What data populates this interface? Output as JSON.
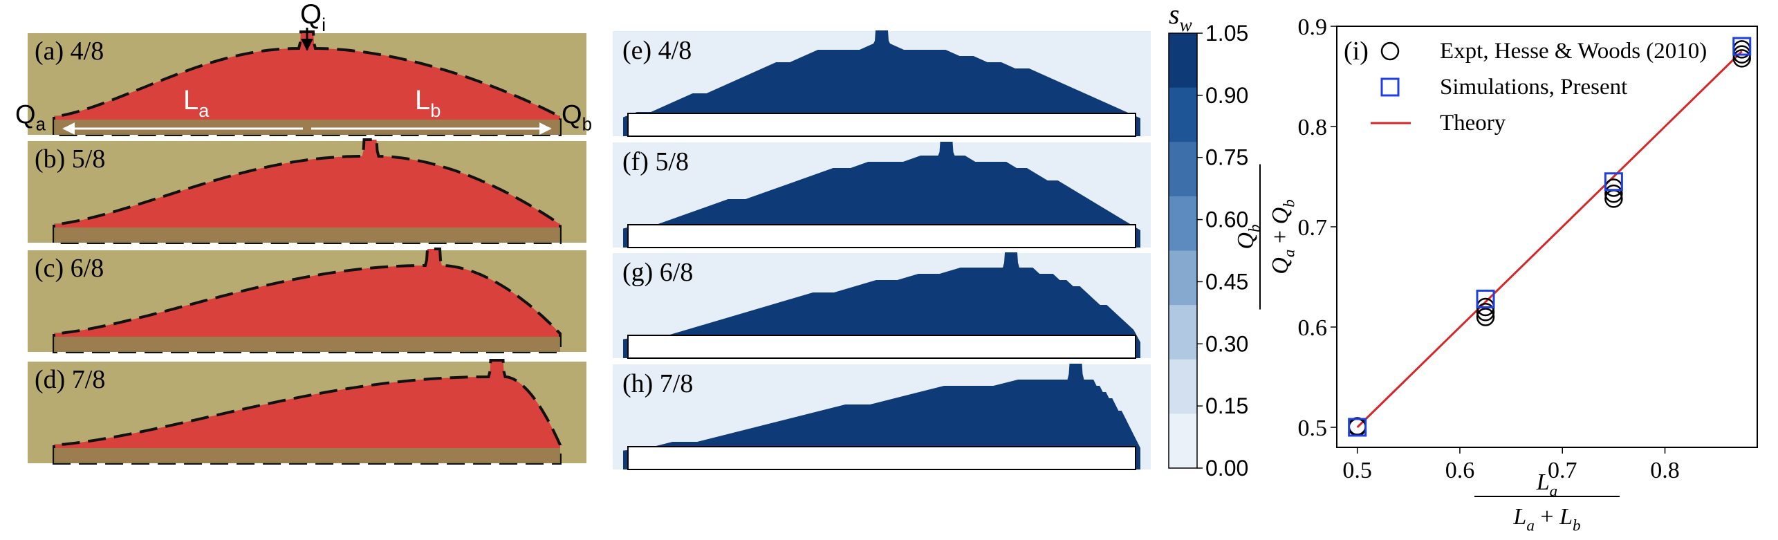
{
  "photo_panels": [
    {
      "label": "(a) 4/8",
      "source_fraction": 0.5
    },
    {
      "label": "(b) 5/8",
      "source_fraction": 0.625
    },
    {
      "label": "(c) 6/8",
      "source_fraction": 0.75
    },
    {
      "label": "(d) 7/8",
      "source_fraction": 0.875
    }
  ],
  "photo_annotations": {
    "Qi": "Q",
    "Qi_sub": "i",
    "Qa": "Q",
    "Qa_sub": "a",
    "Qb": "Q",
    "Qb_sub": "b",
    "La": "L",
    "La_sub": "a",
    "Lb": "L",
    "Lb_sub": "b"
  },
  "sim_panels": [
    {
      "label": "(e) 4/8",
      "source_fraction": 0.5
    },
    {
      "label": "(f) 5/8",
      "source_fraction": 0.625
    },
    {
      "label": "(g) 6/8",
      "source_fraction": 0.75
    },
    {
      "label": "(h) 7/8",
      "source_fraction": 0.875
    }
  ],
  "colors": {
    "fluid_red": "#d9413d",
    "photo_bg": "#b8ab72",
    "photo_floor": "#948452",
    "sim_dark": "#0e3a78",
    "sim_bg": "#e6eef8",
    "theory_line": "#d62728",
    "sim_marker": "#1f3fe0",
    "expt_marker": "#000000"
  },
  "colorbar": {
    "title": "s",
    "title_sub": "w",
    "ticks": [
      "1.05",
      "0.90",
      "0.75",
      "0.60",
      "0.45",
      "0.30",
      "0.15",
      "0.00"
    ],
    "colors": [
      "#0e3a78",
      "#1e5597",
      "#3d6fab",
      "#5d8bbf",
      "#86a9d0",
      "#b0c8e2",
      "#d2e0f0",
      "#eaf1f9"
    ]
  },
  "chart_data": {
    "type": "scatter",
    "panel_label": "(i)",
    "xlim": [
      0.48,
      0.89
    ],
    "ylim": [
      0.48,
      0.9
    ],
    "xticks": [
      0.5,
      0.6,
      0.7,
      0.8
    ],
    "yticks": [
      0.5,
      0.6,
      0.7,
      0.8,
      0.9
    ],
    "xlabel": {
      "num": "L",
      "num_sub": "a",
      "den_1": "L",
      "den_1_sub": "a",
      "plus": "+",
      "den_2": "L",
      "den_2_sub": "b"
    },
    "ylabel": {
      "num": "Q",
      "num_sub": "b",
      "den_1": "Q",
      "den_1_sub": "a",
      "plus": "+",
      "den_2": "Q",
      "den_2_sub": "b"
    },
    "legend_position": "top-left",
    "series": [
      {
        "name": "Expt, Hesse & Woods (2010)",
        "marker": "circle",
        "points": [
          [
            0.5,
            0.5
          ],
          [
            0.5,
            0.501
          ],
          [
            0.625,
            0.61
          ],
          [
            0.625,
            0.615
          ],
          [
            0.625,
            0.62
          ],
          [
            0.75,
            0.728
          ],
          [
            0.75,
            0.733
          ],
          [
            0.75,
            0.739
          ],
          [
            0.875,
            0.868
          ],
          [
            0.875,
            0.872
          ],
          [
            0.875,
            0.877
          ]
        ]
      },
      {
        "name": "Simulations, Present",
        "marker": "square",
        "points": [
          [
            0.5,
            0.5
          ],
          [
            0.625,
            0.628
          ],
          [
            0.75,
            0.745
          ],
          [
            0.875,
            0.88
          ]
        ]
      },
      {
        "name": "Theory",
        "marker": "line",
        "points": [
          [
            0.5,
            0.5
          ],
          [
            0.875,
            0.875
          ]
        ]
      }
    ]
  }
}
